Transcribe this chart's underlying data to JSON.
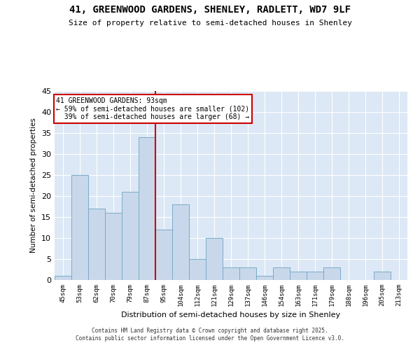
{
  "title_line1": "41, GREENWOOD GARDENS, SHENLEY, RADLETT, WD7 9LF",
  "title_line2": "Size of property relative to semi-detached houses in Shenley",
  "xlabel": "Distribution of semi-detached houses by size in Shenley",
  "ylabel": "Number of semi-detached properties",
  "categories": [
    "45sqm",
    "53sqm",
    "62sqm",
    "70sqm",
    "79sqm",
    "87sqm",
    "95sqm",
    "104sqm",
    "112sqm",
    "121sqm",
    "129sqm",
    "137sqm",
    "146sqm",
    "154sqm",
    "163sqm",
    "171sqm",
    "179sqm",
    "188sqm",
    "196sqm",
    "205sqm",
    "213sqm"
  ],
  "values": [
    1,
    25,
    17,
    16,
    21,
    34,
    12,
    18,
    5,
    10,
    3,
    3,
    1,
    3,
    2,
    2,
    3,
    0,
    0,
    2,
    0
  ],
  "bar_color": "#c8d8ea",
  "bar_edge_color": "#7aaac8",
  "vline_color": "#cc0000",
  "vline_x_index": 6,
  "annotation_title": "41 GREENWOOD GARDENS: 93sqm",
  "annotation_line1": "← 59% of semi-detached houses are smaller (102)",
  "annotation_line2": "  39% of semi-detached houses are larger (68) →",
  "annotation_box_color": "#ffffff",
  "annotation_box_edge": "#cc0000",
  "ylim": [
    0,
    45
  ],
  "yticks": [
    0,
    5,
    10,
    15,
    20,
    25,
    30,
    35,
    40,
    45
  ],
  "background_color": "#dce8f5",
  "footer_line1": "Contains HM Land Registry data © Crown copyright and database right 2025.",
  "footer_line2": "Contains public sector information licensed under the Open Government Licence v3.0."
}
